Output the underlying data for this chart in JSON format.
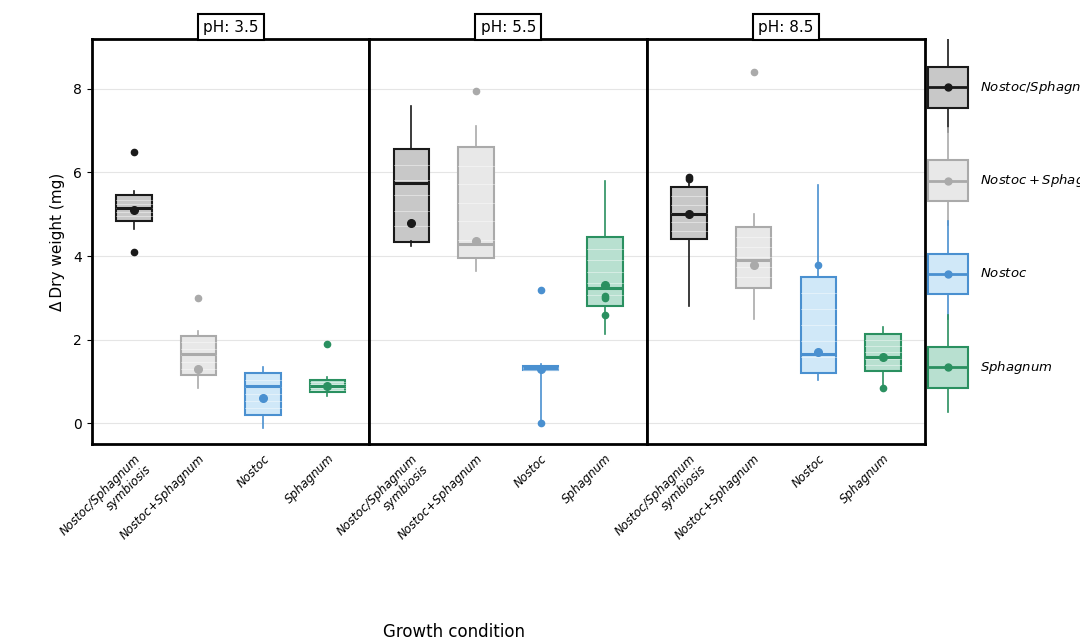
{
  "ylabel": "Δ Dry weight (mg)",
  "xlabel": "Growth condition",
  "ylim": [
    -0.5,
    9.2
  ],
  "yticks": [
    0,
    2,
    4,
    6,
    8
  ],
  "panel_labels": [
    "pH: 3.5",
    "pH: 5.5",
    "pH: 8.5"
  ],
  "colors": {
    "symbiosis": {
      "face": "#c8c8c8",
      "edge": "#1a1a1a",
      "median": "#1a1a1a",
      "dot": "#1a1a1a"
    },
    "nostoc_sphagnum": {
      "face": "#e8e8e8",
      "edge": "#aaaaaa",
      "median": "#aaaaaa",
      "dot": "#aaaaaa"
    },
    "nostoc": {
      "face": "#d0e8f8",
      "edge": "#4a90d0",
      "median": "#4a90d0",
      "dot": "#4a90d0"
    },
    "sphagnum": {
      "face": "#b8e0d0",
      "edge": "#2a9060",
      "median": "#2a9060",
      "dot": "#2a9060"
    }
  },
  "data": {
    "ph35": {
      "symbiosis": {
        "q1": 4.85,
        "median": 5.15,
        "q3": 5.45,
        "wlo": 4.65,
        "whi": 5.55,
        "mean": 5.1,
        "outliers": [
          6.5,
          4.1
        ]
      },
      "nostoc_sphagnum": {
        "q1": 1.15,
        "median": 1.65,
        "q3": 2.1,
        "wlo": 0.85,
        "whi": 2.2,
        "mean": 1.3,
        "outliers": [
          3.0
        ]
      },
      "nostoc": {
        "q1": 0.2,
        "median": 0.9,
        "q3": 1.2,
        "wlo": -0.1,
        "whi": 1.35,
        "mean": 0.6,
        "outliers": []
      },
      "sphagnum": {
        "q1": 0.75,
        "median": 0.9,
        "q3": 1.05,
        "wlo": 0.65,
        "whi": 1.1,
        "mean": 0.9,
        "outliers": [
          1.9
        ]
      }
    },
    "ph55": {
      "symbiosis": {
        "q1": 4.35,
        "median": 5.75,
        "q3": 6.55,
        "wlo": 4.25,
        "whi": 7.6,
        "mean": 4.8,
        "outliers": []
      },
      "nostoc_sphagnum": {
        "q1": 3.95,
        "median": 4.3,
        "q3": 6.6,
        "wlo": 3.65,
        "whi": 7.1,
        "mean": 4.35,
        "outliers": [
          7.95
        ]
      },
      "nostoc": {
        "q1": 1.27,
        "median": 1.32,
        "q3": 1.37,
        "wlo": -0.05,
        "whi": 1.42,
        "mean": 1.3,
        "outliers": [
          3.2,
          0.0
        ]
      },
      "sphagnum": {
        "q1": 2.8,
        "median": 3.25,
        "q3": 4.45,
        "wlo": 2.15,
        "whi": 5.8,
        "mean": 3.3,
        "outliers": [
          2.6,
          3.05,
          3.0
        ]
      }
    },
    "ph85": {
      "symbiosis": {
        "q1": 4.4,
        "median": 5.0,
        "q3": 5.65,
        "wlo": 2.8,
        "whi": 5.95,
        "mean": 5.0,
        "outliers": [
          5.9,
          5.85
        ]
      },
      "nostoc_sphagnum": {
        "q1": 3.25,
        "median": 3.9,
        "q3": 4.7,
        "wlo": 2.5,
        "whi": 5.0,
        "mean": 3.8,
        "outliers": [
          8.4
        ]
      },
      "nostoc": {
        "q1": 1.2,
        "median": 1.65,
        "q3": 3.5,
        "wlo": 1.05,
        "whi": 5.7,
        "mean": 1.7,
        "outliers": [
          3.8
        ]
      },
      "sphagnum": {
        "q1": 1.25,
        "median": 1.6,
        "q3": 2.15,
        "wlo": 0.85,
        "whi": 2.3,
        "mean": 1.6,
        "outliers": [
          0.85
        ]
      }
    }
  },
  "legend_labels": [
    "Nostoc/Sphagnum symbiosis",
    "Nostoc+Sphagnum",
    "Nostoc",
    "Sphagnum"
  ],
  "legend_keys": [
    "symbiosis",
    "nostoc_sphagnum",
    "nostoc",
    "sphagnum"
  ],
  "legend_italic_parts": [
    [
      "Nostoc/Sphagnum",
      " symbiosis"
    ],
    [
      "Nostoc",
      "+",
      "Sphagnum"
    ],
    [
      "Nostoc"
    ],
    [
      "Sphagnum"
    ]
  ],
  "condition_labels": [
    "Nostoc/Sphagnum\nsymbiosis",
    "Nostoc+Sphagnum",
    "Nostoc",
    "Sphagnum"
  ],
  "condition_keys": [
    "symbiosis",
    "nostoc_sphagnum",
    "nostoc",
    "sphagnum"
  ]
}
